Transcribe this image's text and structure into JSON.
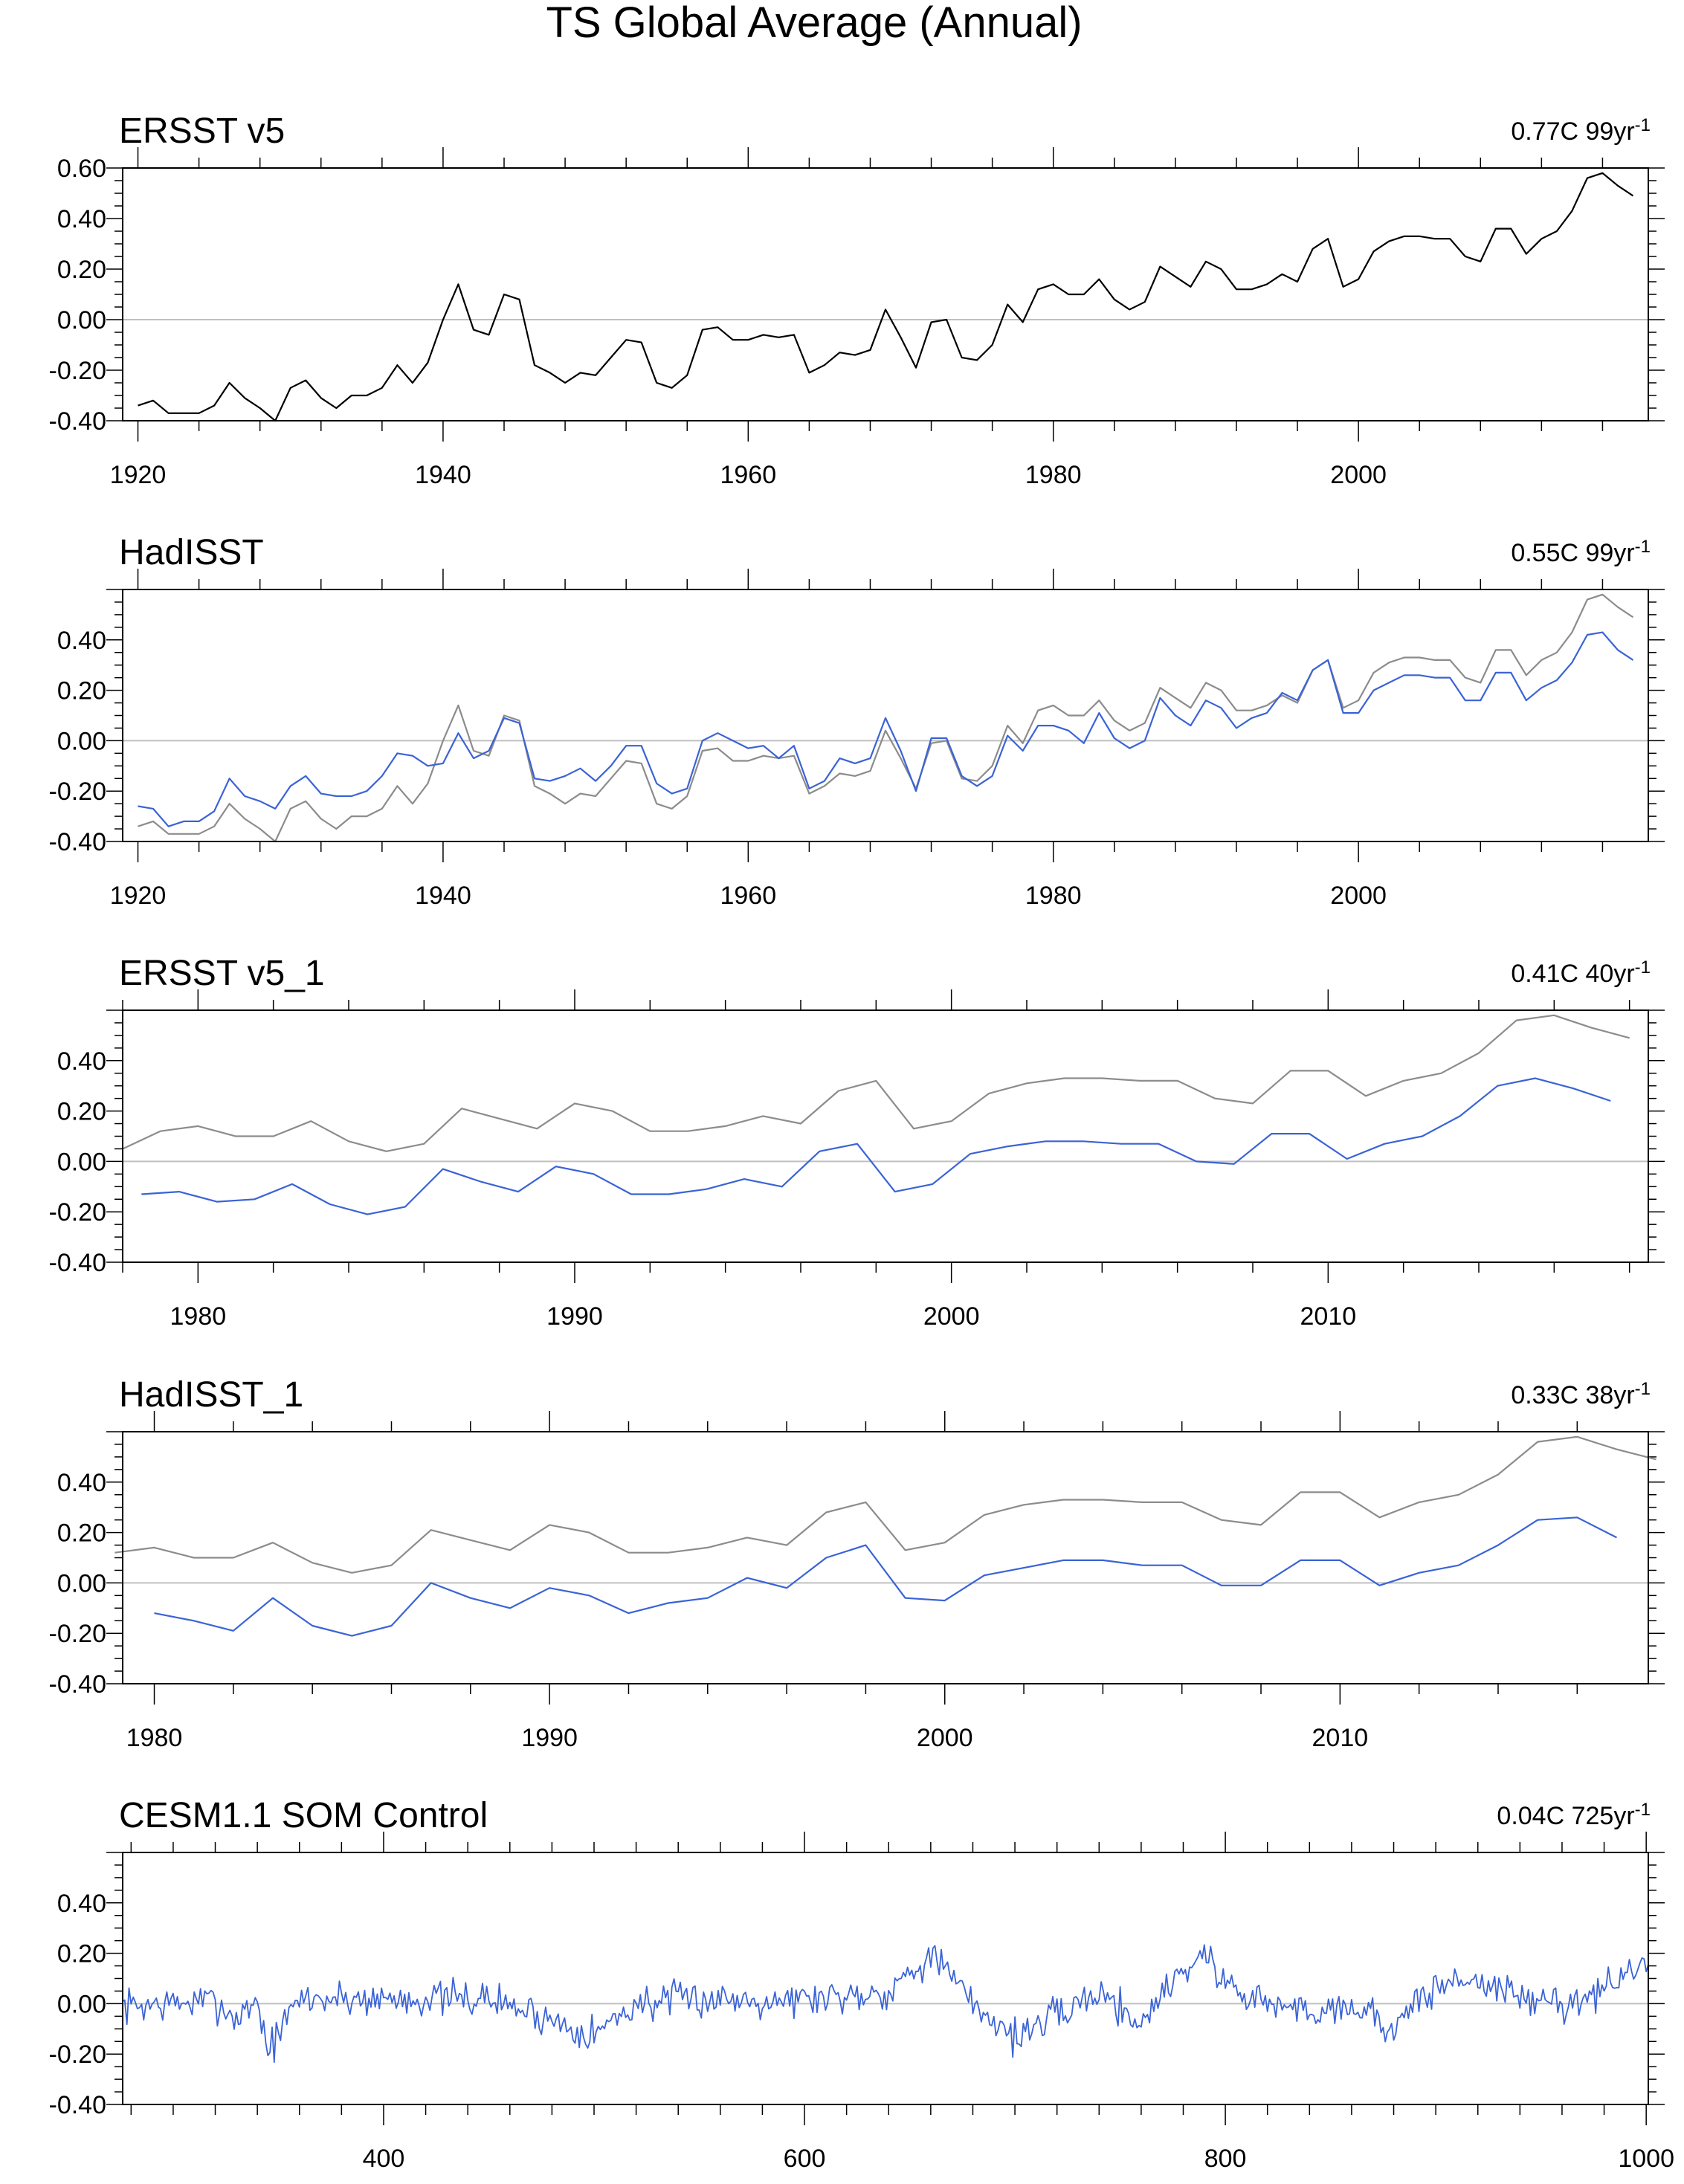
{
  "figure": {
    "title": "TS Global Average (Annual)"
  },
  "colors": {
    "black": "#000000",
    "gray": "#8c8c8c",
    "blue": "#3a63d6",
    "zero_line": "#c0c0c0",
    "frame": "#000000"
  },
  "chart_data": [
    {
      "type": "line",
      "title": "ERSST v5",
      "trend_label": "0.77C 99yr",
      "trend_sup": "-1",
      "xlim": [
        1919,
        2019
      ],
      "ylim": [
        -0.4,
        0.6
      ],
      "yticks": [
        -0.4,
        -0.2,
        0.0,
        0.2,
        0.4,
        0.6
      ],
      "ytick_labels": [
        "-0.40",
        "-0.20",
        "0.00",
        "0.20",
        "0.40",
        "0.60"
      ],
      "xticks": [
        1920,
        1940,
        1960,
        1980,
        2000
      ],
      "xtick_labels": [
        "1920",
        "1940",
        "1960",
        "1980",
        "2000"
      ],
      "xminor_step": 4,
      "x_start": 1920,
      "series": [
        {
          "name": "ERSST v5",
          "color": "black",
          "values": [
            -0.34,
            -0.32,
            -0.37,
            -0.37,
            -0.37,
            -0.34,
            -0.25,
            -0.31,
            -0.35,
            -0.4,
            -0.27,
            -0.24,
            -0.31,
            -0.35,
            -0.3,
            -0.3,
            -0.27,
            -0.18,
            -0.25,
            -0.17,
            0.0,
            0.14,
            -0.04,
            -0.06,
            0.1,
            0.08,
            -0.18,
            -0.21,
            -0.25,
            -0.21,
            -0.22,
            -0.15,
            -0.08,
            -0.09,
            -0.25,
            -0.27,
            -0.22,
            -0.04,
            -0.03,
            -0.08,
            -0.08,
            -0.06,
            -0.07,
            -0.06,
            -0.21,
            -0.18,
            -0.13,
            -0.14,
            -0.12,
            0.04,
            -0.07,
            -0.19,
            -0.01,
            0.0,
            -0.15,
            -0.16,
            -0.1,
            0.06,
            -0.01,
            0.12,
            0.14,
            0.1,
            0.1,
            0.16,
            0.08,
            0.04,
            0.07,
            0.21,
            0.17,
            0.13,
            0.23,
            0.2,
            0.12,
            0.12,
            0.14,
            0.18,
            0.15,
            0.28,
            0.32,
            0.13,
            0.16,
            0.27,
            0.31,
            0.33,
            0.33,
            0.32,
            0.32,
            0.25,
            0.23,
            0.36,
            0.36,
            0.26,
            0.32,
            0.35,
            0.43,
            0.56,
            0.58,
            0.53,
            0.49
          ]
        }
      ]
    },
    {
      "type": "line",
      "title": "HadISST",
      "trend_label": "0.55C 99yr",
      "trend_sup": "-1",
      "xlim": [
        1919,
        2019
      ],
      "ylim": [
        -0.4,
        0.6
      ],
      "yticks": [
        -0.4,
        -0.2,
        0.0,
        0.2,
        0.4
      ],
      "ytick_labels": [
        "-0.40",
        "-0.20",
        "0.00",
        "0.20",
        "0.40"
      ],
      "xticks": [
        1920,
        1940,
        1960,
        1980,
        2000
      ],
      "xtick_labels": [
        "1920",
        "1940",
        "1960",
        "1980",
        "2000"
      ],
      "xminor_step": 4,
      "x_start": 1920,
      "series": [
        {
          "name": "ERSST v5",
          "color": "gray",
          "values": [
            -0.34,
            -0.32,
            -0.37,
            -0.37,
            -0.37,
            -0.34,
            -0.25,
            -0.31,
            -0.35,
            -0.4,
            -0.27,
            -0.24,
            -0.31,
            -0.35,
            -0.3,
            -0.3,
            -0.27,
            -0.18,
            -0.25,
            -0.17,
            0.0,
            0.14,
            -0.04,
            -0.06,
            0.1,
            0.08,
            -0.18,
            -0.21,
            -0.25,
            -0.21,
            -0.22,
            -0.15,
            -0.08,
            -0.09,
            -0.25,
            -0.27,
            -0.22,
            -0.04,
            -0.03,
            -0.08,
            -0.08,
            -0.06,
            -0.07,
            -0.06,
            -0.21,
            -0.18,
            -0.13,
            -0.14,
            -0.12,
            0.04,
            -0.07,
            -0.19,
            -0.01,
            0.0,
            -0.15,
            -0.16,
            -0.1,
            0.06,
            -0.01,
            0.12,
            0.14,
            0.1,
            0.1,
            0.16,
            0.08,
            0.04,
            0.07,
            0.21,
            0.17,
            0.13,
            0.23,
            0.2,
            0.12,
            0.12,
            0.14,
            0.18,
            0.15,
            0.28,
            0.32,
            0.13,
            0.16,
            0.27,
            0.31,
            0.33,
            0.33,
            0.32,
            0.32,
            0.25,
            0.23,
            0.36,
            0.36,
            0.26,
            0.32,
            0.35,
            0.43,
            0.56,
            0.58,
            0.53,
            0.49
          ]
        },
        {
          "name": "HadISST",
          "color": "blue",
          "values": [
            -0.26,
            -0.27,
            -0.34,
            -0.32,
            -0.32,
            -0.28,
            -0.15,
            -0.22,
            -0.24,
            -0.27,
            -0.18,
            -0.14,
            -0.21,
            -0.22,
            -0.22,
            -0.2,
            -0.14,
            -0.05,
            -0.06,
            -0.1,
            -0.09,
            0.03,
            -0.07,
            -0.04,
            0.09,
            0.07,
            -0.15,
            -0.16,
            -0.14,
            -0.11,
            -0.16,
            -0.1,
            -0.02,
            -0.02,
            -0.17,
            -0.21,
            -0.19,
            0.0,
            0.03,
            0.0,
            -0.03,
            -0.02,
            -0.07,
            -0.02,
            -0.19,
            -0.16,
            -0.07,
            -0.09,
            -0.07,
            0.09,
            -0.04,
            -0.2,
            0.01,
            0.01,
            -0.14,
            -0.18,
            -0.14,
            0.02,
            -0.04,
            0.06,
            0.06,
            0.04,
            -0.01,
            0.11,
            0.01,
            -0.03,
            0.0,
            0.17,
            0.1,
            0.06,
            0.16,
            0.13,
            0.05,
            0.09,
            0.11,
            0.19,
            0.16,
            0.28,
            0.32,
            0.11,
            0.11,
            0.2,
            0.23,
            0.26,
            0.26,
            0.25,
            0.25,
            0.16,
            0.16,
            0.27,
            0.27,
            0.16,
            0.21,
            0.24,
            0.31,
            0.42,
            0.43,
            0.36,
            0.32
          ]
        }
      ]
    },
    {
      "type": "line",
      "title": "ERSST v5_1",
      "trend_label": "0.41C 40yr",
      "trend_sup": "-1",
      "xlim": [
        1978,
        2018.5
      ],
      "ylim": [
        -0.4,
        0.6
      ],
      "yticks": [
        -0.4,
        -0.2,
        0.0,
        0.2,
        0.4
      ],
      "ytick_labels": [
        "-0.40",
        "-0.20",
        "0.00",
        "0.20",
        "0.40"
      ],
      "xticks": [
        1980,
        1990,
        2000,
        2010
      ],
      "xtick_labels": [
        "1980",
        "1990",
        "2000",
        "2010"
      ],
      "xminor_step": 2,
      "x_start": 1978,
      "series": [
        {
          "name": "ERSST v5",
          "color": "gray",
          "values": [
            0.05,
            0.12,
            0.14,
            0.1,
            0.1,
            0.16,
            0.08,
            0.04,
            0.07,
            0.21,
            0.17,
            0.13,
            0.23,
            0.2,
            0.12,
            0.12,
            0.14,
            0.18,
            0.15,
            0.28,
            0.32,
            0.13,
            0.16,
            0.27,
            0.31,
            0.33,
            0.33,
            0.32,
            0.32,
            0.25,
            0.23,
            0.36,
            0.36,
            0.26,
            0.32,
            0.35,
            0.43,
            0.56,
            0.58,
            0.53,
            0.49
          ]
        },
        {
          "name": "ERSST v5_1",
          "color": "blue",
          "x_start": 1978.5,
          "values": [
            -0.13,
            -0.12,
            -0.16,
            -0.15,
            -0.09,
            -0.17,
            -0.21,
            -0.18,
            -0.03,
            -0.08,
            -0.12,
            -0.02,
            -0.05,
            -0.13,
            -0.13,
            -0.11,
            -0.07,
            -0.1,
            0.04,
            0.07,
            -0.12,
            -0.09,
            0.03,
            0.06,
            0.08,
            0.08,
            0.07,
            0.07,
            0.0,
            -0.01,
            0.11,
            0.11,
            0.01,
            0.07,
            0.1,
            0.18,
            0.3,
            0.33,
            0.29,
            0.24
          ]
        }
      ]
    },
    {
      "type": "line",
      "title": "HadISST_1",
      "trend_label": "0.33C 38yr",
      "trend_sup": "-1",
      "xlim": [
        1979.2,
        2017.8
      ],
      "ylim": [
        -0.4,
        0.6
      ],
      "yticks": [
        -0.4,
        -0.2,
        0.0,
        0.2,
        0.4
      ],
      "ytick_labels": [
        "-0.40",
        "-0.20",
        "0.00",
        "0.20",
        "0.40"
      ],
      "xticks": [
        1980,
        1990,
        2000,
        2010
      ],
      "xtick_labels": [
        "1980",
        "1990",
        "2000",
        "2010"
      ],
      "xminor_step": 2,
      "x_start": 1979,
      "series": [
        {
          "name": "ERSST v5",
          "color": "gray",
          "values": [
            0.12,
            0.14,
            0.1,
            0.1,
            0.16,
            0.08,
            0.04,
            0.07,
            0.21,
            0.17,
            0.13,
            0.23,
            0.2,
            0.12,
            0.12,
            0.14,
            0.18,
            0.15,
            0.28,
            0.32,
            0.13,
            0.16,
            0.27,
            0.31,
            0.33,
            0.33,
            0.32,
            0.32,
            0.25,
            0.23,
            0.36,
            0.36,
            0.26,
            0.32,
            0.35,
            0.43,
            0.56,
            0.58,
            0.53,
            0.49
          ]
        },
        {
          "name": "HadISST_1",
          "color": "blue",
          "x_start": 1980,
          "values": [
            -0.12,
            -0.15,
            -0.19,
            -0.06,
            -0.17,
            -0.21,
            -0.17,
            0.0,
            -0.06,
            -0.1,
            -0.02,
            -0.05,
            -0.12,
            -0.08,
            -0.06,
            0.02,
            -0.02,
            0.1,
            0.15,
            -0.06,
            -0.07,
            0.03,
            0.06,
            0.09,
            0.09,
            0.07,
            0.07,
            -0.01,
            -0.01,
            0.09,
            0.09,
            -0.01,
            0.04,
            0.07,
            0.15,
            0.25,
            0.26,
            0.18
          ]
        }
      ]
    },
    {
      "type": "line",
      "title": "CESM1.1 SOM Control",
      "trend_label": "0.04C 725yr",
      "trend_sup": "-1",
      "xlim": [
        276,
        1001
      ],
      "ylim": [
        -0.4,
        0.6
      ],
      "yticks": [
        -0.4,
        -0.2,
        0.0,
        0.2,
        0.4
      ],
      "ytick_labels": [
        "-0.40",
        "-0.20",
        "0.00",
        "0.20",
        "0.40"
      ],
      "xticks": [
        400,
        600,
        800,
        1000
      ],
      "xtick_labels": [
        "400",
        "600",
        "800",
        "1000"
      ],
      "xminor_step": 20,
      "x_start": 276,
      "series": [
        {
          "name": "CESM1.1 SOM Control",
          "color": "blue",
          "generated": true,
          "x_end": 1001,
          "anchors": [
            [
              276,
              -0.01
            ],
            [
              300,
              0.0
            ],
            [
              320,
              0.01
            ],
            [
              330,
              -0.06
            ],
            [
              340,
              0.02
            ],
            [
              345,
              -0.19
            ],
            [
              360,
              0.02
            ],
            [
              400,
              0.02
            ],
            [
              450,
              0.02
            ],
            [
              500,
              -0.12
            ],
            [
              520,
              0.0
            ],
            [
              550,
              0.02
            ],
            [
              600,
              0.02
            ],
            [
              640,
              0.05
            ],
            [
              660,
              0.2
            ],
            [
              680,
              0.0
            ],
            [
              700,
              -0.13
            ],
            [
              720,
              -0.05
            ],
            [
              740,
              0.05
            ],
            [
              760,
              -0.08
            ],
            [
              775,
              0.1
            ],
            [
              790,
              0.2
            ],
            [
              800,
              0.08
            ],
            [
              820,
              0.0
            ],
            [
              840,
              -0.03
            ],
            [
              860,
              0.0
            ],
            [
              880,
              -0.1
            ],
            [
              900,
              0.07
            ],
            [
              920,
              0.1
            ],
            [
              940,
              0.02
            ],
            [
              960,
              0.0
            ],
            [
              980,
              0.05
            ],
            [
              995,
              0.15
            ],
            [
              1001,
              0.1
            ]
          ],
          "noise_amp": 0.055,
          "seed": 7
        }
      ]
    }
  ]
}
